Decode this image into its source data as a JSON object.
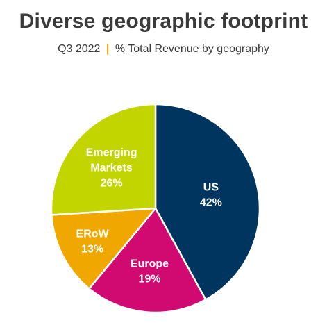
{
  "header": {
    "title": "Diverse geographic footprint",
    "subtitle_period": "Q3 2022",
    "subtitle_separator": "|",
    "subtitle_text": "% Total Revenue by geography"
  },
  "chart_data": {
    "type": "pie",
    "title": "Diverse geographic footprint",
    "subtitle": "Q3 2022 | % Total Revenue by geography",
    "unit": "%",
    "slices": [
      {
        "label": "US",
        "label_lines": [
          "US"
        ],
        "value": 42,
        "value_text": "42%",
        "color": "#003560"
      },
      {
        "label": "Europe",
        "label_lines": [
          "Europe"
        ],
        "value": 19,
        "value_text": "19%",
        "color": "#d10a72"
      },
      {
        "label": "ERoW",
        "label_lines": [
          "ERoW"
        ],
        "value": 13,
        "value_text": "13%",
        "color": "#f0a800"
      },
      {
        "label": "Emerging Markets",
        "label_lines": [
          "Emerging",
          "Markets"
        ],
        "value": 26,
        "value_text": "26%",
        "color": "#c3d500"
      }
    ],
    "legend": "none",
    "start": "12 o'clock",
    "direction": "clockwise"
  }
}
